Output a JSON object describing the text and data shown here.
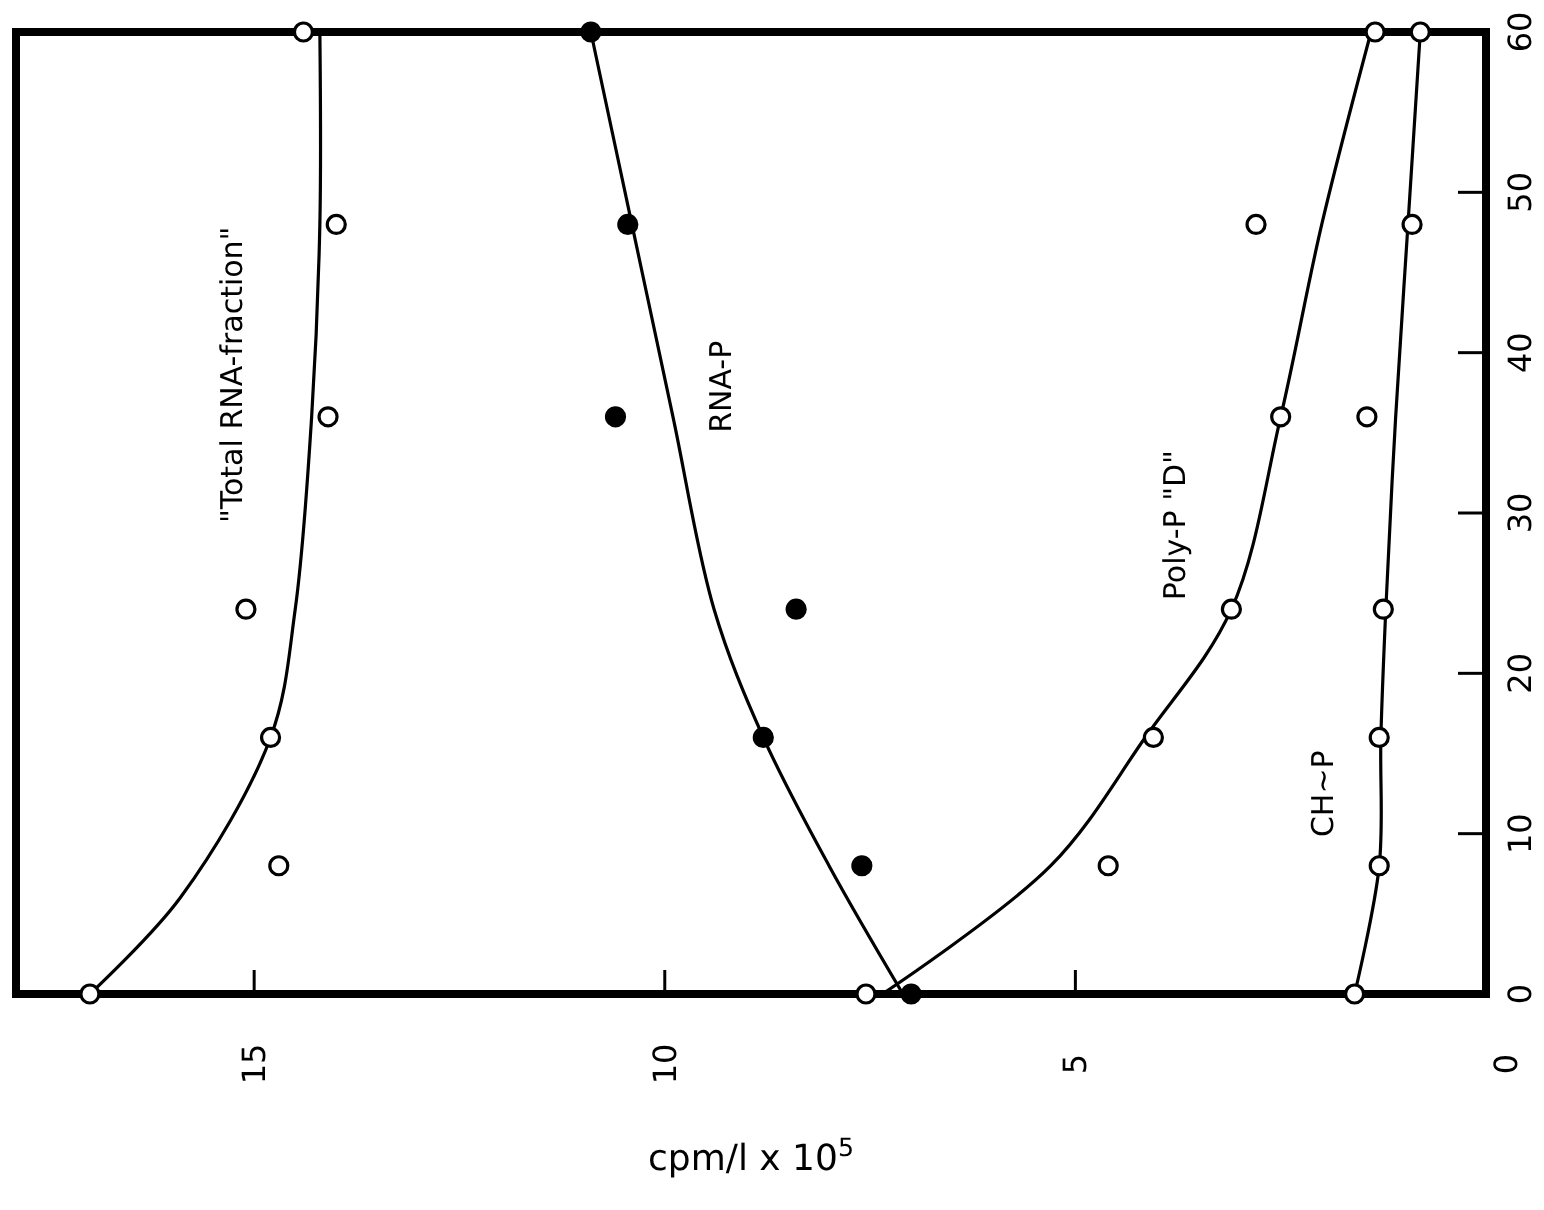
{
  "chart_data": {
    "type": "scatter",
    "xlabel": "cpm/l x 10$^{5}$",
    "xlim": [
      17.9,
      0
    ],
    "xticks": [
      15,
      10,
      5,
      0
    ],
    "ylim": [
      0,
      60
    ],
    "yticks": [
      0,
      10,
      20,
      30,
      40,
      50,
      60
    ],
    "series": [
      {
        "marker": "circle",
        "color": "#ffffff",
        "x": [
          17.0,
          14.7,
          14.8,
          15.1,
          14.1,
          14.0,
          14.4
        ],
        "values": [
          0,
          8,
          16,
          24,
          36,
          48,
          60
        ]
      },
      {
        "marker": "circle",
        "color": "#000000",
        "x": [
          7.0,
          7.6,
          8.8,
          8.4,
          10.6,
          10.45,
          10.9
        ],
        "values": [
          0,
          8,
          16,
          24,
          36,
          48,
          60
        ]
      },
      {
        "marker": "circle",
        "color": "#ffffff",
        "x": [
          7.55,
          4.6,
          4.05,
          3.1,
          2.5,
          2.8,
          1.35
        ],
        "values": [
          0,
          8,
          16,
          24,
          36,
          48,
          60
        ]
      },
      {
        "marker": "circle",
        "color": "#ffffff",
        "x": [
          1.6,
          1.3,
          1.3,
          1.25,
          1.45,
          0.9,
          0.8
        ],
        "values": [
          0,
          8,
          16,
          24,
          36,
          48,
          60
        ]
      },
      {
        "type": "line",
        "name": "\"Total RNA-fraction\"",
        "color": "#000000",
        "x": [
          17.0,
          15.9,
          14.8,
          14.5,
          14.3,
          14.2,
          14.2
        ],
        "values": [
          0,
          6,
          16,
          24,
          36,
          48,
          60
        ]
      },
      {
        "type": "line",
        "name": "RNA-P",
        "color": "#000000",
        "x": [
          7.1,
          8.0,
          8.8,
          9.4,
          9.9,
          10.4,
          10.9
        ],
        "values": [
          0,
          8,
          16,
          24,
          36,
          48,
          60
        ]
      },
      {
        "type": "line",
        "name": "Poly-P \"D\"",
        "color": "#000000",
        "x": [
          7.35,
          5.3,
          4.15,
          3.1,
          2.5,
          2.0,
          1.4
        ],
        "values": [
          0,
          8,
          16,
          24,
          36,
          48,
          60
        ]
      },
      {
        "type": "line",
        "name": "CH~P",
        "color": "#000000",
        "x": [
          1.6,
          1.3,
          1.28,
          1.22,
          1.1,
          0.95,
          0.8
        ],
        "values": [
          0,
          8,
          16,
          24,
          36,
          48,
          60
        ]
      }
    ]
  }
}
